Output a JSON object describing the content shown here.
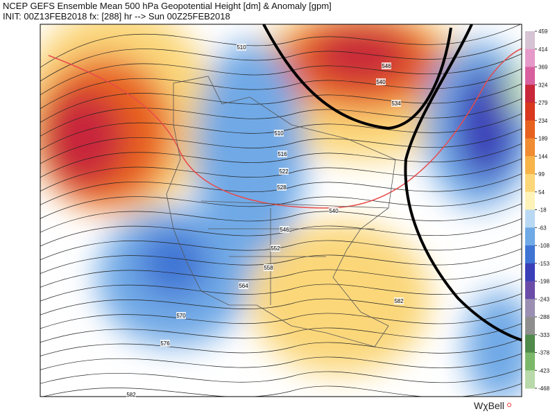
{
  "header": {
    "title": "NCEP GEFS Ensemble Mean 500 hPa Geopotential Height [dm] & Anomaly [gpm]",
    "subtitle": "INIT: 00Z13FEB2018 fx: [288] hr --> Sun 00Z25FEB2018"
  },
  "colorbar": {
    "ticks": [
      459,
      414,
      369,
      324,
      279,
      234,
      189,
      144,
      99,
      54,
      -18,
      -63,
      -108,
      -153,
      -198,
      -243,
      -288,
      -333,
      -378,
      -423,
      -468
    ],
    "colors": [
      "#d6c3d3",
      "#e59ac9",
      "#d9609f",
      "#c8283a",
      "#d9381f",
      "#e8621f",
      "#f08c32",
      "#f7b449",
      "#fbd77a",
      "#fdf2b8",
      "#b9d8f3",
      "#6fa9e6",
      "#3f74d4",
      "#3a3fb8",
      "#6a4ca8",
      "#9a8fb3",
      "#8e8e8e",
      "#4f8a4a",
      "#7cb86a",
      "#b8d9a9"
    ]
  },
  "contour_labels": [
    510,
    546,
    540,
    534,
    510,
    516,
    522,
    528,
    540,
    546,
    552,
    558,
    564,
    582,
    570,
    576,
    582
  ],
  "logo": "WχBell"
}
